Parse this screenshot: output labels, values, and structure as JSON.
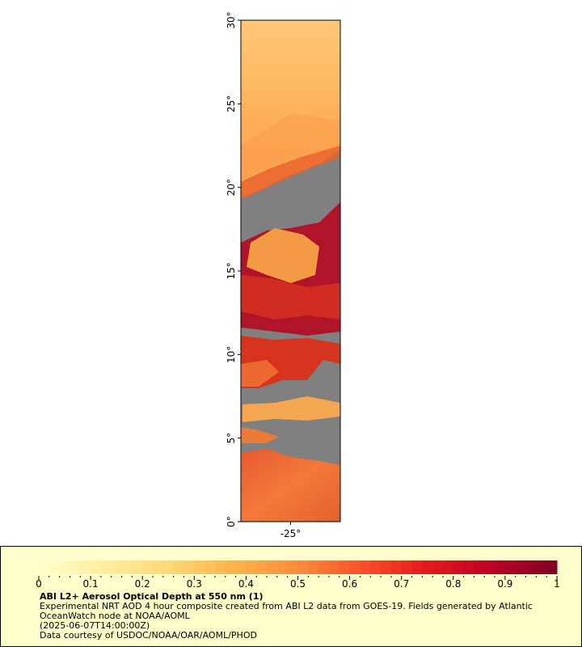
{
  "map": {
    "lat_labels": [
      "0°",
      "5°",
      "10°",
      "15°",
      "20°",
      "25°",
      "30°"
    ],
    "lat_values": [
      0,
      5,
      10,
      15,
      20,
      25,
      30
    ],
    "lon_labels": [
      "-25°"
    ],
    "lon_values": [
      -25
    ],
    "lon_range": [
      -28,
      -22
    ],
    "lat_range": [
      0,
      30
    ],
    "missing_data_color": "#808080"
  },
  "legend": {
    "title": "ABI L2+ Aerosol Optical Depth at 550 nm (1)",
    "line1": "Experimental NRT AOD 4 hour composite created from ABI L2 data from GOES-19. Fields generated by Atlantic OceanWatch node at NOAA/AOML",
    "line2": "(2025-06-07T14:00:00Z)",
    "line3": "Data courtesy of USDOC/NOAA/OAR/AOML/PHOD",
    "background": "#ffffcc"
  },
  "colorbar": {
    "min": 0,
    "max": 1,
    "tick_labels": [
      "0",
      "0.1",
      "0.2",
      "0.3",
      "0.4",
      "0.5",
      "0.6",
      "0.7",
      "0.8",
      "0.9",
      "1"
    ],
    "tick_values": [
      0,
      0.1,
      0.2,
      0.3,
      0.4,
      0.5,
      0.6,
      0.7,
      0.8,
      0.9,
      1
    ],
    "colors": [
      "#ffffcc",
      "#ffeda0",
      "#fed976",
      "#feb24c",
      "#fd8d3c",
      "#fc4e2a",
      "#e31a1c",
      "#bd0026",
      "#800026"
    ]
  }
}
